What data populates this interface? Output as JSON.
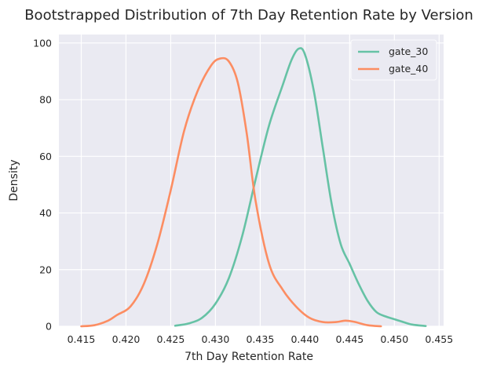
{
  "chart_data": {
    "type": "line",
    "title": "Bootstrapped Distribution of 7th Day Retention Rate by Version",
    "xlabel": "7th Day Retention Rate",
    "ylabel": "Density",
    "xlim": [
      0.4125,
      0.4555
    ],
    "ylim": [
      0,
      103
    ],
    "xticks": [
      0.415,
      0.42,
      0.425,
      0.43,
      0.435,
      0.44,
      0.445,
      0.45,
      0.455
    ],
    "xtick_labels": [
      "0.415",
      "0.420",
      "0.425",
      "0.430",
      "0.435",
      "0.440",
      "0.445",
      "0.450",
      "0.455"
    ],
    "yticks": [
      0,
      20,
      40,
      60,
      80,
      100
    ],
    "ytick_labels": [
      "0",
      "20",
      "40",
      "60",
      "80",
      "100"
    ],
    "grid": true,
    "legend_position": "top-right",
    "series": [
      {
        "name": "gate_30",
        "color": "#66c2a5",
        "x": [
          0.4255,
          0.427,
          0.4285,
          0.43,
          0.4315,
          0.433,
          0.4345,
          0.436,
          0.4375,
          0.4385,
          0.4393,
          0.44,
          0.441,
          0.442,
          0.443,
          0.444,
          0.445,
          0.446,
          0.447,
          0.448,
          0.449,
          0.45,
          0.451,
          0.452,
          0.4535
        ],
        "y": [
          0.2,
          1,
          3,
          8,
          17,
          32,
          52,
          71,
          85,
          94,
          98,
          96,
          83,
          63,
          43,
          29,
          22,
          15,
          9,
          5,
          3.5,
          2.5,
          1.5,
          0.6,
          0.1
        ]
      },
      {
        "name": "gate_40",
        "color": "#fc8d62",
        "x": [
          0.415,
          0.4165,
          0.418,
          0.419,
          0.4205,
          0.422,
          0.4235,
          0.425,
          0.4265,
          0.428,
          0.4295,
          0.4305,
          0.4315,
          0.4325,
          0.4335,
          0.4345,
          0.436,
          0.4375,
          0.439,
          0.4405,
          0.442,
          0.4435,
          0.4445,
          0.4455,
          0.447,
          0.4485
        ],
        "y": [
          0,
          0.4,
          2,
          4,
          7,
          15,
          29,
          48,
          69,
          83,
          92,
          94.5,
          93.5,
          86,
          68,
          44,
          22,
          13,
          7,
          3,
          1.5,
          1.5,
          2,
          1.6,
          0.4,
          0
        ]
      }
    ]
  }
}
